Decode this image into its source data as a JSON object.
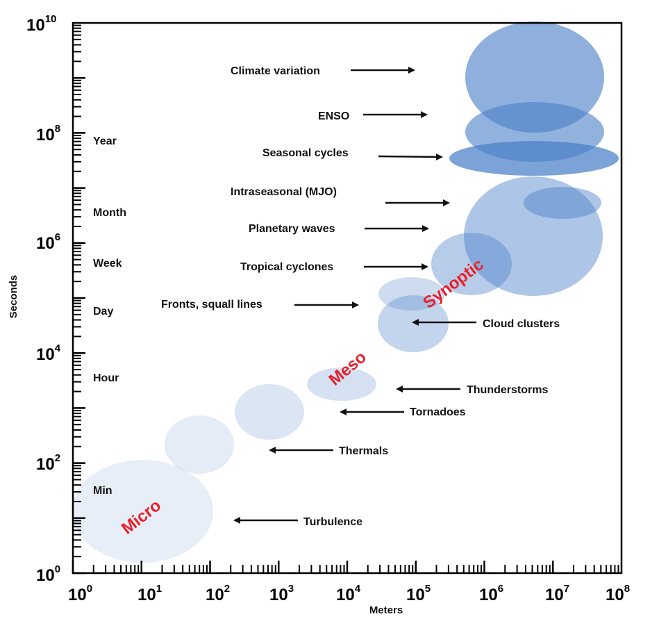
{
  "axes": {
    "x_title": "Meters",
    "y_title": "Seconds",
    "x_ticks": [
      {
        "base": "10",
        "exp": "0"
      },
      {
        "base": "10",
        "exp": "1"
      },
      {
        "base": "10",
        "exp": "2"
      },
      {
        "base": "10",
        "exp": "3"
      },
      {
        "base": "10",
        "exp": "4"
      },
      {
        "base": "10",
        "exp": "5"
      },
      {
        "base": "10",
        "exp": "6"
      },
      {
        "base": "10",
        "exp": "7"
      },
      {
        "base": "10",
        "exp": "8"
      }
    ],
    "y_ticks": [
      {
        "base": "10",
        "exp": "0"
      },
      {
        "base": "10",
        "exp": "2"
      },
      {
        "base": "10",
        "exp": "4"
      },
      {
        "base": "10",
        "exp": "6"
      },
      {
        "base": "10",
        "exp": "8"
      },
      {
        "base": "10",
        "exp": "10"
      }
    ],
    "x_range": [
      0,
      8
    ],
    "y_range": [
      0,
      10
    ],
    "scale": "log"
  },
  "time_labels": {
    "year": "Year",
    "month": "Month",
    "week": "Week",
    "day": "Day",
    "hour": "Hour",
    "min": "Min"
  },
  "regimes": {
    "micro": "Micro",
    "meso": "Meso",
    "synoptic": "Synoptic",
    "color": "#e8202a"
  },
  "phenomena": {
    "climate_variation": "Climate variation",
    "enso": "ENSO",
    "seasonal_cycles": "Seasonal cycles",
    "intraseasonal": "Intraseasonal (MJO)",
    "planetary_waves": "Planetary waves",
    "tropical_cyclones": "Tropical cyclones",
    "fronts": "Fronts, squall lines",
    "cloud_clusters": "Cloud clusters",
    "thunderstorms": "Thunderstorms",
    "tornadoes": "Tornadoes",
    "thermals": "Thermals",
    "turbulence": "Turbulence"
  },
  "colors": {
    "ellipse_fill": "#4a7fc8",
    "axis": "#000000"
  }
}
